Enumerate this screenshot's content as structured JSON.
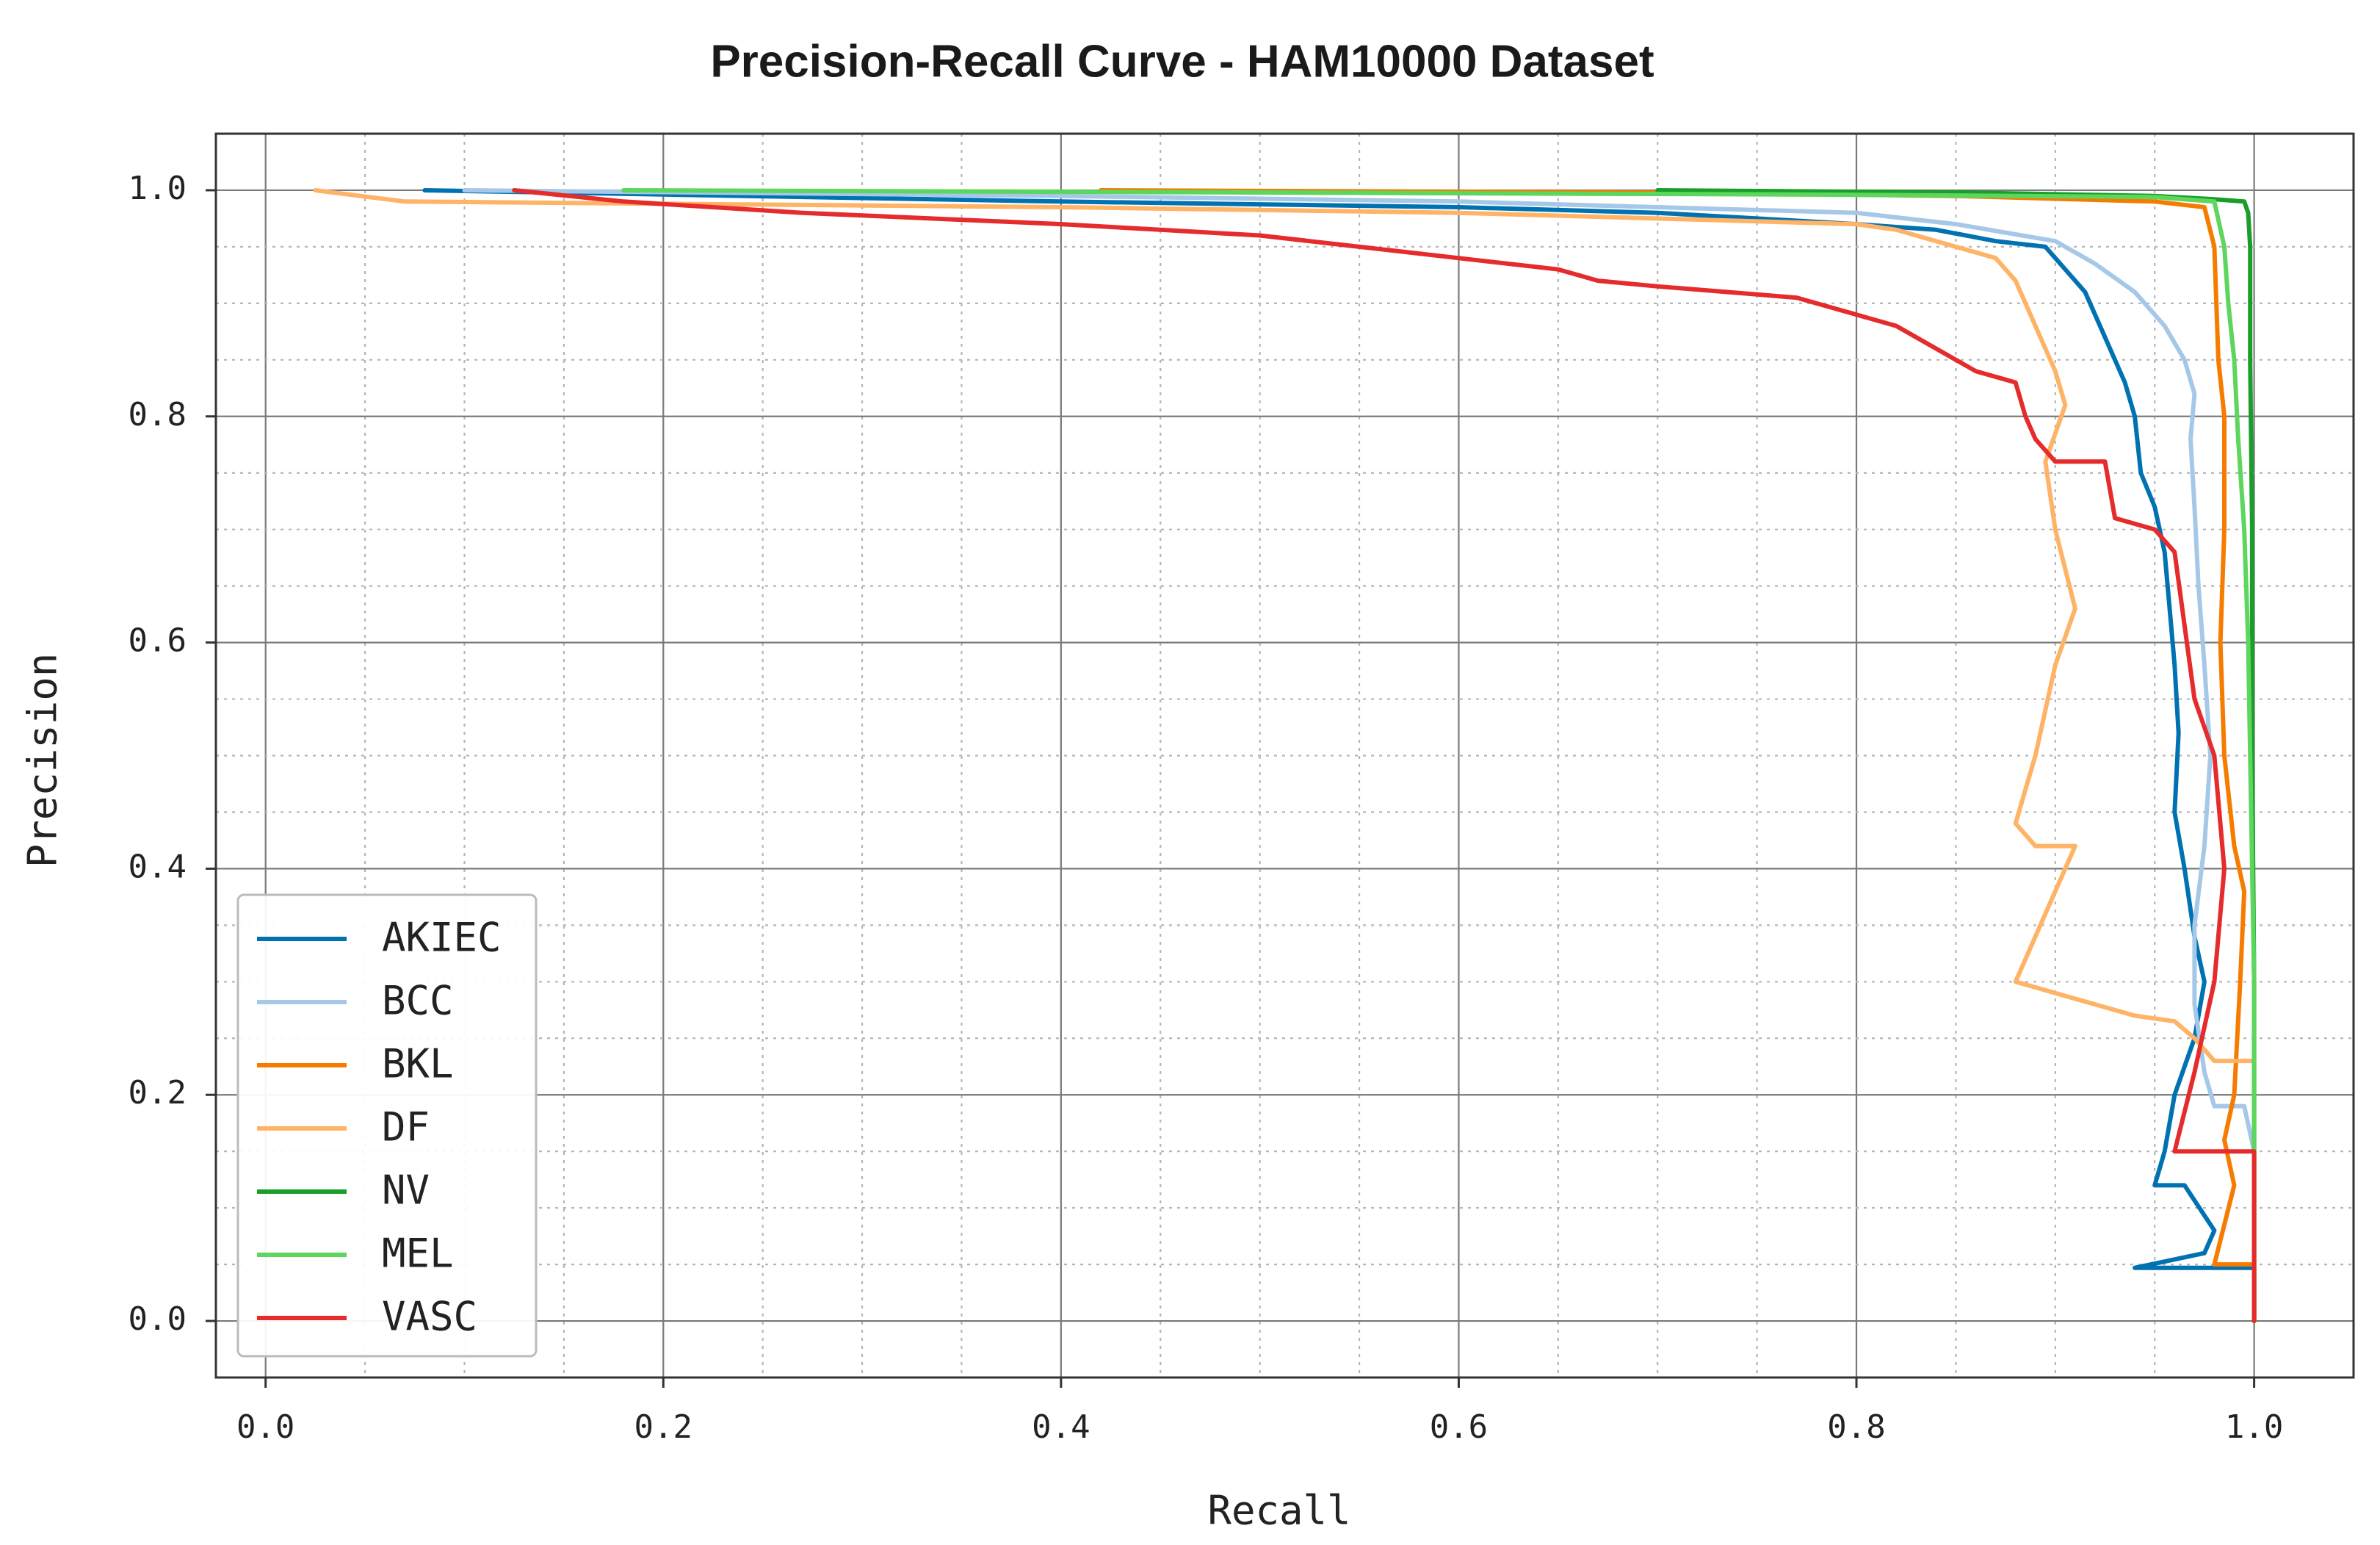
{
  "chart_data": {
    "type": "line",
    "title": "Precision-Recall Curve - HAM10000 Dataset",
    "xlabel": "Recall",
    "ylabel": "Precision",
    "xlim": [
      -0.025,
      1.05
    ],
    "ylim": [
      -0.05,
      1.05
    ],
    "xticks": [
      0.0,
      0.2,
      0.4,
      0.6,
      0.8,
      1.0
    ],
    "yticks": [
      0.0,
      0.2,
      0.4,
      0.6,
      0.8,
      1.0
    ],
    "xtick_labels": [
      "0.0",
      "0.2",
      "0.4",
      "0.6",
      "0.8",
      "1.0"
    ],
    "ytick_labels": [
      "0.0",
      "0.2",
      "0.4",
      "0.6",
      "0.8",
      "1.0"
    ],
    "grid": true,
    "legend_position": "lower-left",
    "series": [
      {
        "name": "AKIEC",
        "color": "#0072b2",
        "points": [
          [
            0.08,
            1.0
          ],
          [
            0.4,
            0.99
          ],
          [
            0.6,
            0.985
          ],
          [
            0.7,
            0.98
          ],
          [
            0.75,
            0.975
          ],
          [
            0.8,
            0.97
          ],
          [
            0.84,
            0.965
          ],
          [
            0.87,
            0.955
          ],
          [
            0.895,
            0.95
          ],
          [
            0.905,
            0.93
          ],
          [
            0.915,
            0.91
          ],
          [
            0.925,
            0.87
          ],
          [
            0.935,
            0.83
          ],
          [
            0.94,
            0.8
          ],
          [
            0.943,
            0.75
          ],
          [
            0.95,
            0.72
          ],
          [
            0.955,
            0.68
          ],
          [
            0.958,
            0.62
          ],
          [
            0.96,
            0.58
          ],
          [
            0.962,
            0.52
          ],
          [
            0.96,
            0.45
          ],
          [
            0.965,
            0.4
          ],
          [
            0.97,
            0.34
          ],
          [
            0.975,
            0.3
          ],
          [
            0.97,
            0.25
          ],
          [
            0.96,
            0.2
          ],
          [
            0.955,
            0.15
          ],
          [
            0.95,
            0.12
          ],
          [
            0.965,
            0.12
          ],
          [
            0.98,
            0.08
          ],
          [
            0.975,
            0.06
          ],
          [
            0.94,
            0.047
          ],
          [
            1.0,
            0.047
          ],
          [
            1.0,
            0.0
          ]
        ]
      },
      {
        "name": "BCC",
        "color": "#a6c8e8",
        "points": [
          [
            0.1,
            1.0
          ],
          [
            0.4,
            0.995
          ],
          [
            0.6,
            0.99
          ],
          [
            0.8,
            0.98
          ],
          [
            0.85,
            0.97
          ],
          [
            0.9,
            0.955
          ],
          [
            0.92,
            0.935
          ],
          [
            0.94,
            0.91
          ],
          [
            0.955,
            0.88
          ],
          [
            0.965,
            0.85
          ],
          [
            0.97,
            0.82
          ],
          [
            0.968,
            0.78
          ],
          [
            0.97,
            0.72
          ],
          [
            0.972,
            0.65
          ],
          [
            0.975,
            0.58
          ],
          [
            0.978,
            0.5
          ],
          [
            0.975,
            0.42
          ],
          [
            0.97,
            0.35
          ],
          [
            0.97,
            0.28
          ],
          [
            0.975,
            0.22
          ],
          [
            0.98,
            0.19
          ],
          [
            0.995,
            0.19
          ],
          [
            1.0,
            0.15
          ],
          [
            1.0,
            0.0
          ]
        ]
      },
      {
        "name": "BKL",
        "color": "#f57c00",
        "points": [
          [
            0.42,
            1.0
          ],
          [
            0.7,
            0.998
          ],
          [
            0.85,
            0.995
          ],
          [
            0.95,
            0.99
          ],
          [
            0.975,
            0.985
          ],
          [
            0.98,
            0.95
          ],
          [
            0.982,
            0.85
          ],
          [
            0.985,
            0.8
          ],
          [
            0.985,
            0.7
          ],
          [
            0.983,
            0.6
          ],
          [
            0.985,
            0.5
          ],
          [
            0.99,
            0.42
          ],
          [
            0.995,
            0.38
          ],
          [
            0.993,
            0.3
          ],
          [
            0.99,
            0.2
          ],
          [
            0.985,
            0.16
          ],
          [
            0.99,
            0.12
          ],
          [
            0.98,
            0.05
          ],
          [
            1.0,
            0.05
          ],
          [
            1.0,
            0.0
          ]
        ]
      },
      {
        "name": "DF",
        "color": "#ffb366",
        "points": [
          [
            0.025,
            1.0
          ],
          [
            0.07,
            0.99
          ],
          [
            0.4,
            0.985
          ],
          [
            0.6,
            0.98
          ],
          [
            0.8,
            0.97
          ],
          [
            0.82,
            0.965
          ],
          [
            0.85,
            0.95
          ],
          [
            0.87,
            0.94
          ],
          [
            0.88,
            0.92
          ],
          [
            0.89,
            0.88
          ],
          [
            0.9,
            0.84
          ],
          [
            0.905,
            0.81
          ],
          [
            0.895,
            0.76
          ],
          [
            0.9,
            0.7
          ],
          [
            0.91,
            0.63
          ],
          [
            0.9,
            0.58
          ],
          [
            0.89,
            0.5
          ],
          [
            0.88,
            0.44
          ],
          [
            0.89,
            0.42
          ],
          [
            0.91,
            0.42
          ],
          [
            0.9,
            0.38
          ],
          [
            0.88,
            0.3
          ],
          [
            0.9,
            0.29
          ],
          [
            0.92,
            0.28
          ],
          [
            0.94,
            0.27
          ],
          [
            0.96,
            0.265
          ],
          [
            0.97,
            0.25
          ],
          [
            0.98,
            0.23
          ],
          [
            1.0,
            0.23
          ],
          [
            1.0,
            0.0
          ]
        ]
      },
      {
        "name": "NV",
        "color": "#1a9e2a",
        "points": [
          [
            0.7,
            1.0
          ],
          [
            0.85,
            0.998
          ],
          [
            0.95,
            0.995
          ],
          [
            0.98,
            0.992
          ],
          [
            0.995,
            0.99
          ],
          [
            0.997,
            0.98
          ],
          [
            0.998,
            0.95
          ],
          [
            0.998,
            0.85
          ],
          [
            0.999,
            0.7
          ],
          [
            0.999,
            0.5
          ],
          [
            1.0,
            0.3
          ],
          [
            1.0,
            0.0
          ]
        ]
      },
      {
        "name": "MEL",
        "color": "#5cd65c",
        "points": [
          [
            0.18,
            1.0
          ],
          [
            0.5,
            0.998
          ],
          [
            0.8,
            0.996
          ],
          [
            0.95,
            0.994
          ],
          [
            0.98,
            0.99
          ],
          [
            0.985,
            0.95
          ],
          [
            0.987,
            0.9
          ],
          [
            0.99,
            0.85
          ],
          [
            0.992,
            0.78
          ],
          [
            0.995,
            0.7
          ],
          [
            0.997,
            0.6
          ],
          [
            0.998,
            0.5
          ],
          [
            0.999,
            0.4
          ],
          [
            1.0,
            0.3
          ],
          [
            1.0,
            0.15
          ],
          [
            1.0,
            0.0
          ]
        ]
      },
      {
        "name": "VASC",
        "color": "#e52b2b",
        "points": [
          [
            0.125,
            1.0
          ],
          [
            0.18,
            0.99
          ],
          [
            0.27,
            0.98
          ],
          [
            0.4,
            0.97
          ],
          [
            0.45,
            0.965
          ],
          [
            0.5,
            0.96
          ],
          [
            0.55,
            0.95
          ],
          [
            0.6,
            0.94
          ],
          [
            0.65,
            0.93
          ],
          [
            0.67,
            0.92
          ],
          [
            0.7,
            0.915
          ],
          [
            0.77,
            0.905
          ],
          [
            0.8,
            0.89
          ],
          [
            0.82,
            0.88
          ],
          [
            0.84,
            0.86
          ],
          [
            0.86,
            0.84
          ],
          [
            0.88,
            0.83
          ],
          [
            0.885,
            0.8
          ],
          [
            0.89,
            0.78
          ],
          [
            0.9,
            0.76
          ],
          [
            0.925,
            0.76
          ],
          [
            0.93,
            0.71
          ],
          [
            0.95,
            0.7
          ],
          [
            0.96,
            0.68
          ],
          [
            0.97,
            0.55
          ],
          [
            0.98,
            0.5
          ],
          [
            0.985,
            0.4
          ],
          [
            0.98,
            0.3
          ],
          [
            0.97,
            0.22
          ],
          [
            0.96,
            0.15
          ],
          [
            1.0,
            0.15
          ],
          [
            1.0,
            0.0
          ]
        ]
      }
    ]
  }
}
